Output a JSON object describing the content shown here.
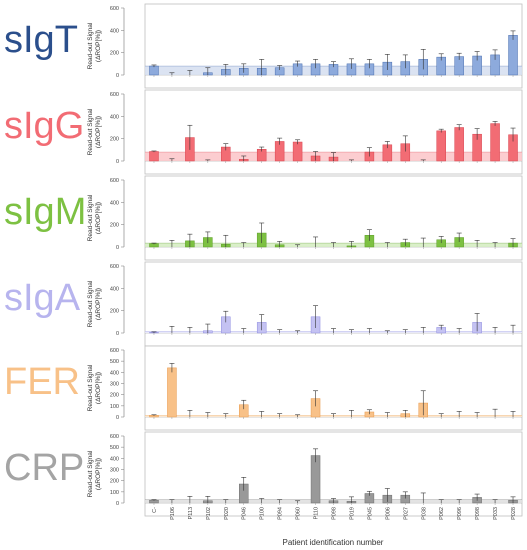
{
  "figure": {
    "x_title": "Patient identification number",
    "y_title_line1": "Read-out Signal",
    "y_title_line2": "(ΔROP[%])"
  },
  "chart_data": [
    {
      "type": "bar",
      "title": "sIgT",
      "color": "#2b4f8c",
      "bar_color": "#8daadc",
      "bar_edge": "#4a6fb0",
      "band_color": "#d5def0",
      "band_value": 80,
      "ylim": [
        0,
        600
      ],
      "yticks": [
        "0",
        "200",
        "400",
        "600"
      ],
      "categories": [
        "C-",
        "P106",
        "P113",
        "P102",
        "P020",
        "P046",
        "P100",
        "P094",
        "P060",
        "P110",
        "P098",
        "P019",
        "P045",
        "P006",
        "P027",
        "P038",
        "P062",
        "P096",
        "P098",
        "P033",
        "P028"
      ],
      "values": [
        80,
        0,
        0,
        20,
        50,
        60,
        60,
        65,
        100,
        100,
        95,
        100,
        100,
        115,
        120,
        140,
        160,
        165,
        170,
        180,
        355
      ],
      "errors": [
        10,
        20,
        40,
        45,
        45,
        40,
        80,
        20,
        25,
        40,
        25,
        45,
        40,
        70,
        60,
        90,
        30,
        30,
        40,
        45,
        40
      ]
    },
    {
      "type": "bar",
      "title": "sIgG",
      "color": "#f26c74",
      "bar_color": "#f26c74",
      "bar_edge": "#d9434e",
      "band_color": "#fbc4c8",
      "band_value": 80,
      "ylim": [
        0,
        600
      ],
      "yticks": [
        "0",
        "200",
        "400",
        "600"
      ],
      "categories": [
        "C-",
        "P106",
        "P113",
        "P102",
        "P020",
        "P046",
        "P100",
        "P094",
        "P060",
        "P110",
        "P098",
        "P019",
        "P045",
        "P006",
        "P027",
        "P038",
        "P062",
        "P096",
        "P098",
        "P033",
        "P028"
      ],
      "values": [
        85,
        0,
        210,
        0,
        125,
        15,
        105,
        175,
        170,
        45,
        35,
        0,
        80,
        145,
        155,
        0,
        270,
        300,
        240,
        335,
        235
      ],
      "errors": [
        5,
        20,
        110,
        10,
        30,
        30,
        20,
        30,
        20,
        40,
        40,
        10,
        40,
        30,
        70,
        10,
        15,
        25,
        50,
        20,
        60
      ]
    },
    {
      "type": "bar",
      "title": "sIgM",
      "color": "#7dc142",
      "bar_color": "#7dc142",
      "bar_edge": "#5d9e28",
      "band_color": "#d3ecc0",
      "band_value": 35,
      "ylim": [
        0,
        600
      ],
      "yticks": [
        "0",
        "200",
        "400",
        "600"
      ],
      "categories": [
        "C-",
        "P106",
        "P113",
        "P102",
        "P020",
        "P046",
        "P100",
        "P094",
        "P060",
        "P110",
        "P098",
        "P019",
        "P045",
        "P006",
        "P027",
        "P038",
        "P062",
        "P096",
        "P098",
        "P033",
        "P028"
      ],
      "values": [
        30,
        0,
        55,
        85,
        25,
        0,
        125,
        20,
        0,
        0,
        0,
        10,
        105,
        0,
        40,
        0,
        65,
        85,
        0,
        0,
        35
      ],
      "errors": [
        5,
        60,
        60,
        50,
        80,
        40,
        90,
        30,
        20,
        90,
        40,
        40,
        50,
        40,
        30,
        80,
        30,
        40,
        60,
        40,
        40
      ]
    },
    {
      "type": "bar",
      "title": "sIgA",
      "color": "#b7b4ee",
      "bar_color": "#c4c2f2",
      "bar_edge": "#8f8ce0",
      "band_color": "#e8e7fa",
      "band_value": 15,
      "ylim": [
        0,
        600
      ],
      "yticks": [
        "0",
        "200",
        "400",
        "600"
      ],
      "categories": [
        "C-",
        "P106",
        "P113",
        "P102",
        "P020",
        "P046",
        "P100",
        "P094",
        "P060",
        "P110",
        "P098",
        "P019",
        "P045",
        "P006",
        "P027",
        "P038",
        "P062",
        "P096",
        "P098",
        "P033",
        "P028"
      ],
      "values": [
        5,
        0,
        0,
        20,
        145,
        0,
        95,
        0,
        0,
        145,
        0,
        0,
        0,
        0,
        0,
        0,
        50,
        0,
        95,
        0,
        0
      ],
      "errors": [
        5,
        60,
        50,
        60,
        50,
        40,
        70,
        30,
        20,
        100,
        40,
        30,
        40,
        20,
        30,
        50,
        20,
        40,
        80,
        50,
        70
      ]
    },
    {
      "type": "bar",
      "title": "FER",
      "color": "#f8c188",
      "bar_color": "#f8c188",
      "bar_edge": "#e89a4e",
      "band_color": "#fde6cd",
      "band_value": 15,
      "ylim": [
        0,
        600
      ],
      "yticks": [
        "0",
        "100",
        "200",
        "300",
        "400",
        "500",
        "600"
      ],
      "categories": [
        "C-",
        "P106",
        "P113",
        "P102",
        "P020",
        "P046",
        "P100",
        "P094",
        "P060",
        "P110",
        "P098",
        "P019",
        "P045",
        "P006",
        "P027",
        "P038",
        "P062",
        "P096",
        "P098",
        "P033",
        "P028"
      ],
      "values": [
        15,
        440,
        0,
        0,
        0,
        110,
        0,
        0,
        0,
        165,
        0,
        0,
        45,
        0,
        30,
        125,
        0,
        0,
        0,
        0,
        0
      ],
      "errors": [
        5,
        40,
        60,
        40,
        30,
        40,
        50,
        30,
        20,
        70,
        30,
        60,
        20,
        40,
        30,
        110,
        30,
        50,
        40,
        70,
        50
      ]
    },
    {
      "type": "bar",
      "title": "CRP",
      "color": "#a4a4a4",
      "bar_color": "#999999",
      "bar_edge": "#6e6e6e",
      "band_color": "#dedede",
      "band_value": 30,
      "ylim": [
        0,
        600
      ],
      "yticks": [
        "0",
        "100",
        "200",
        "300",
        "400",
        "500",
        "600"
      ],
      "categories": [
        "C-",
        "P106",
        "P113",
        "P102",
        "P020",
        "P046",
        "P100",
        "P094",
        "P060",
        "P110",
        "P098",
        "P019",
        "P045",
        "P006",
        "P027",
        "P038",
        "P062",
        "P096",
        "P098",
        "P033",
        "P028"
      ],
      "values": [
        25,
        0,
        0,
        20,
        0,
        170,
        0,
        0,
        0,
        425,
        20,
        15,
        85,
        70,
        70,
        0,
        0,
        0,
        50,
        0,
        25
      ],
      "errors": [
        5,
        30,
        60,
        40,
        30,
        60,
        40,
        30,
        20,
        60,
        20,
        40,
        20,
        60,
        30,
        90,
        30,
        30,
        30,
        30,
        30
      ]
    }
  ]
}
